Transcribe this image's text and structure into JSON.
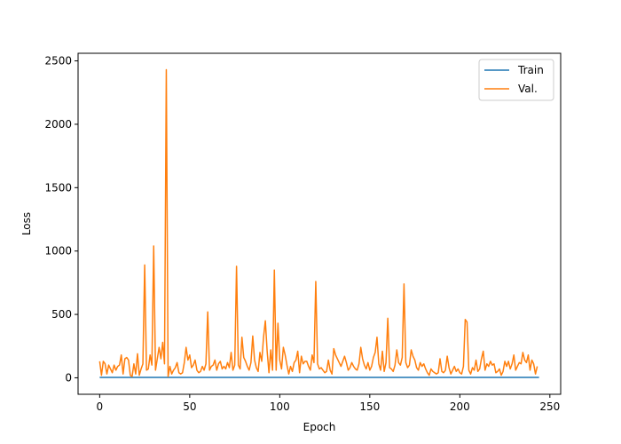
{
  "chart_data": {
    "type": "line",
    "title": "",
    "xlabel": "Epoch",
    "ylabel": "Loss",
    "xlim": [
      -12,
      256
    ],
    "ylim": [
      -130,
      2560
    ],
    "xticks": [
      0,
      50,
      100,
      150,
      200,
      250
    ],
    "yticks": [
      0,
      500,
      1000,
      1500,
      2000,
      2500
    ],
    "grid": false,
    "legend_position": "top-right",
    "series": [
      {
        "name": "Train",
        "color": "#1f77b4",
        "x_start": 0,
        "values": [
          3,
          3,
          3,
          3,
          3,
          3,
          3,
          3,
          3,
          3,
          3,
          3,
          3,
          3,
          3,
          3,
          3,
          3,
          3,
          3,
          3,
          3,
          3,
          3,
          3,
          3,
          3,
          3,
          3,
          3,
          3,
          3,
          3,
          3,
          3,
          3,
          3,
          3,
          3,
          3,
          3,
          3,
          3,
          3,
          3,
          3,
          3,
          3,
          3,
          3,
          3,
          3,
          3,
          3,
          3,
          3,
          3,
          3,
          3,
          3,
          3,
          3,
          3,
          3,
          3,
          3,
          3,
          3,
          3,
          3,
          3,
          3,
          3,
          3,
          3,
          3,
          3,
          3,
          3,
          3,
          3,
          3,
          3,
          3,
          3,
          3,
          3,
          3,
          3,
          3,
          3,
          3,
          3,
          3,
          3,
          3,
          3,
          3,
          3,
          3,
          3,
          3,
          3,
          3,
          3,
          3,
          3,
          3,
          3,
          3,
          3,
          3,
          3,
          3,
          3,
          3,
          3,
          3,
          3,
          3,
          3,
          3,
          3,
          3,
          3,
          3,
          3,
          3,
          3,
          3,
          3,
          3,
          3,
          3,
          3,
          3,
          3,
          3,
          3,
          3,
          3,
          3,
          3,
          3,
          3,
          3,
          3,
          3,
          3,
          3,
          3,
          3,
          3,
          3,
          3,
          3,
          3,
          3,
          3,
          3,
          3,
          3,
          3,
          3,
          3,
          3,
          3,
          3,
          3,
          3,
          3,
          3,
          3,
          3,
          3,
          3,
          3,
          3,
          3,
          3,
          3,
          3,
          3,
          3,
          3,
          3,
          3,
          3,
          3,
          3,
          3,
          3,
          3,
          3,
          3,
          3,
          3,
          3,
          3,
          3,
          3,
          3,
          3,
          3,
          3,
          3,
          3,
          3,
          3,
          3,
          3,
          3,
          3,
          3,
          3,
          3,
          3,
          3,
          3,
          3,
          3,
          3,
          3,
          3,
          3,
          3,
          3,
          3,
          3,
          3,
          3,
          3,
          3,
          3,
          3,
          3,
          3,
          3,
          3,
          3,
          3,
          3,
          3,
          3,
          3
        ]
      },
      {
        "name": "Val.",
        "color": "#ff7f0e",
        "x_start": 0,
        "values": [
          130,
          20,
          130,
          110,
          30,
          100,
          70,
          40,
          100,
          60,
          90,
          100,
          180,
          30,
          150,
          160,
          140,
          20,
          10,
          110,
          30,
          190,
          20,
          70,
          110,
          890,
          60,
          70,
          180,
          100,
          1040,
          60,
          150,
          240,
          150,
          280,
          110,
          2430,
          10,
          90,
          30,
          60,
          80,
          120,
          40,
          30,
          40,
          120,
          240,
          140,
          180,
          80,
          100,
          140,
          60,
          40,
          50,
          90,
          60,
          110,
          520,
          60,
          90,
          100,
          140,
          60,
          110,
          130,
          70,
          90,
          70,
          120,
          80,
          200,
          60,
          100,
          880,
          100,
          70,
          320,
          160,
          130,
          90,
          60,
          120,
          330,
          140,
          80,
          50,
          200,
          130,
          320,
          450,
          210,
          40,
          220,
          60,
          850,
          60,
          430,
          140,
          70,
          240,
          180,
          100,
          30,
          90,
          50,
          120,
          140,
          210,
          40,
          170,
          110,
          130,
          130,
          90,
          60,
          180,
          120,
          760,
          110,
          70,
          80,
          60,
          40,
          50,
          140,
          60,
          30,
          230,
          180,
          150,
          120,
          90,
          130,
          170,
          120,
          60,
          80,
          120,
          90,
          70,
          60,
          110,
          240,
          150,
          100,
          70,
          120,
          60,
          90,
          160,
          200,
          320,
          110,
          60,
          210,
          50,
          120,
          470,
          80,
          70,
          50,
          100,
          220,
          120,
          100,
          160,
          740,
          120,
          80,
          100,
          220,
          170,
          140,
          80,
          60,
          120,
          90,
          110,
          70,
          40,
          20,
          70,
          50,
          40,
          30,
          40,
          150,
          50,
          40,
          60,
          170,
          80,
          30,
          60,
          90,
          50,
          70,
          40,
          30,
          90,
          460,
          440,
          60,
          30,
          80,
          60,
          140,
          50,
          70,
          150,
          210,
          60,
          110,
          90,
          130,
          100,
          110,
          40,
          50,
          70,
          20,
          50,
          130,
          90,
          130,
          70,
          110,
          180,
          60,
          90,
          120,
          110,
          200,
          140,
          120,
          180,
          60,
          140,
          110,
          30,
          90
        ]
      }
    ]
  }
}
